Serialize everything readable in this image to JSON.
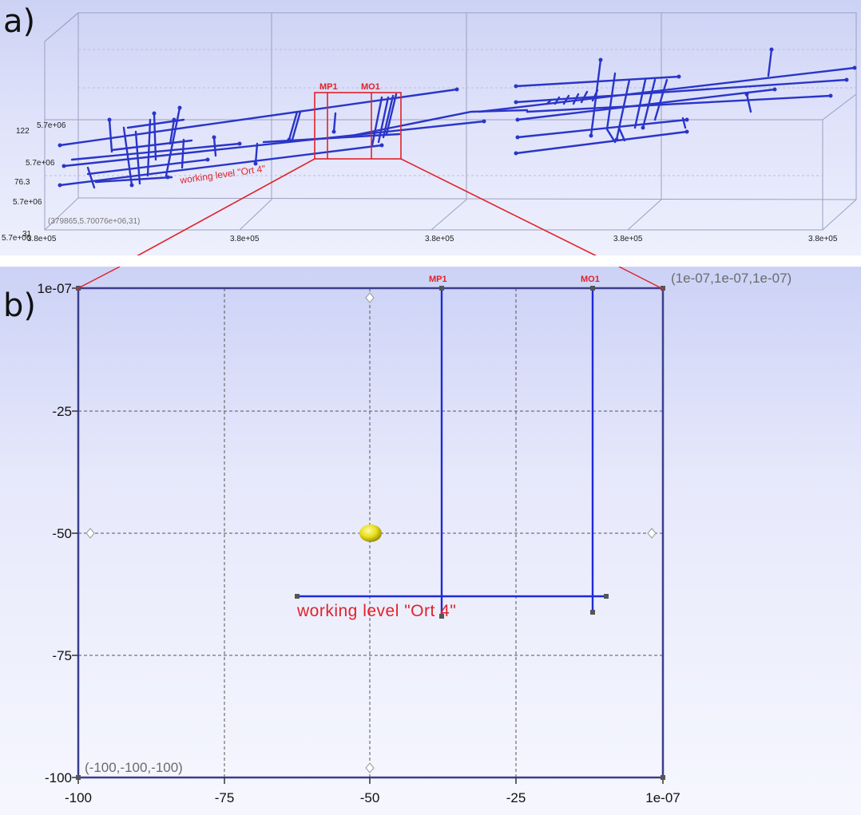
{
  "panel_a": {
    "label": "a)",
    "wells": [
      "MP1",
      "MO1"
    ],
    "annotation": "working level \"Ort 4\"",
    "z_labels": [
      "122",
      "76.3",
      "31"
    ],
    "y_labels": [
      "5.7e+06",
      "5.7e+06",
      "5.7e+06",
      "5.7e+06"
    ],
    "x_labels": [
      "3.8e+05",
      "3.8e+05",
      "3.8e+05",
      "3.8e+05",
      "3.8e+05"
    ],
    "corner_coord": "(379865,5.70076e+06,31)"
  },
  "panel_b": {
    "label": "b)",
    "wells": [
      "MP1",
      "MO1"
    ],
    "annotation": "working level \"Ort 4\"",
    "corner_max": "(1e-07,1e-07,1e-07)",
    "corner_min": "(-100,-100,-100)",
    "y_ticks": [
      "1e-07",
      "-25",
      "-50",
      "-75",
      "-100"
    ],
    "x_ticks": [
      "-100",
      "-75",
      "-50",
      "-25",
      "1e-07"
    ]
  },
  "colors": {
    "mine_line": "#2a35c8",
    "highlight": "#e0222a",
    "sphere": "#e8df1c"
  }
}
